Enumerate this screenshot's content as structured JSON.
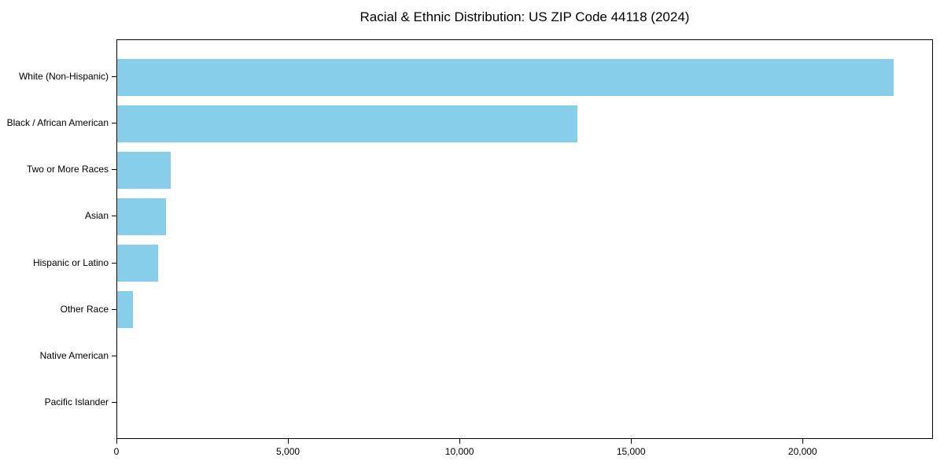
{
  "chart_data": {
    "type": "bar",
    "orientation": "horizontal",
    "title": "Racial & Ethnic Distribution: US ZIP Code 44118 (2024)",
    "categories": [
      "White (Non-Hispanic)",
      "Black / African American",
      "Two or More Races",
      "Asian",
      "Hispanic or Latino",
      "Other Race",
      "Native American",
      "Pacific Islander"
    ],
    "values": [
      22620,
      13420,
      1570,
      1420,
      1190,
      450,
      0,
      0
    ],
    "xlabel": "",
    "ylabel": "",
    "xlim": [
      0,
      23800
    ],
    "x_ticks": [
      0,
      5000,
      10000,
      15000,
      20000
    ],
    "x_tick_labels": [
      "0",
      "5,000",
      "10,000",
      "15,000",
      "20,000"
    ],
    "bar_color": "#87CEEB",
    "frame_color": "#000000",
    "background_color": "#ffffff",
    "grid": false,
    "legend": "none"
  }
}
